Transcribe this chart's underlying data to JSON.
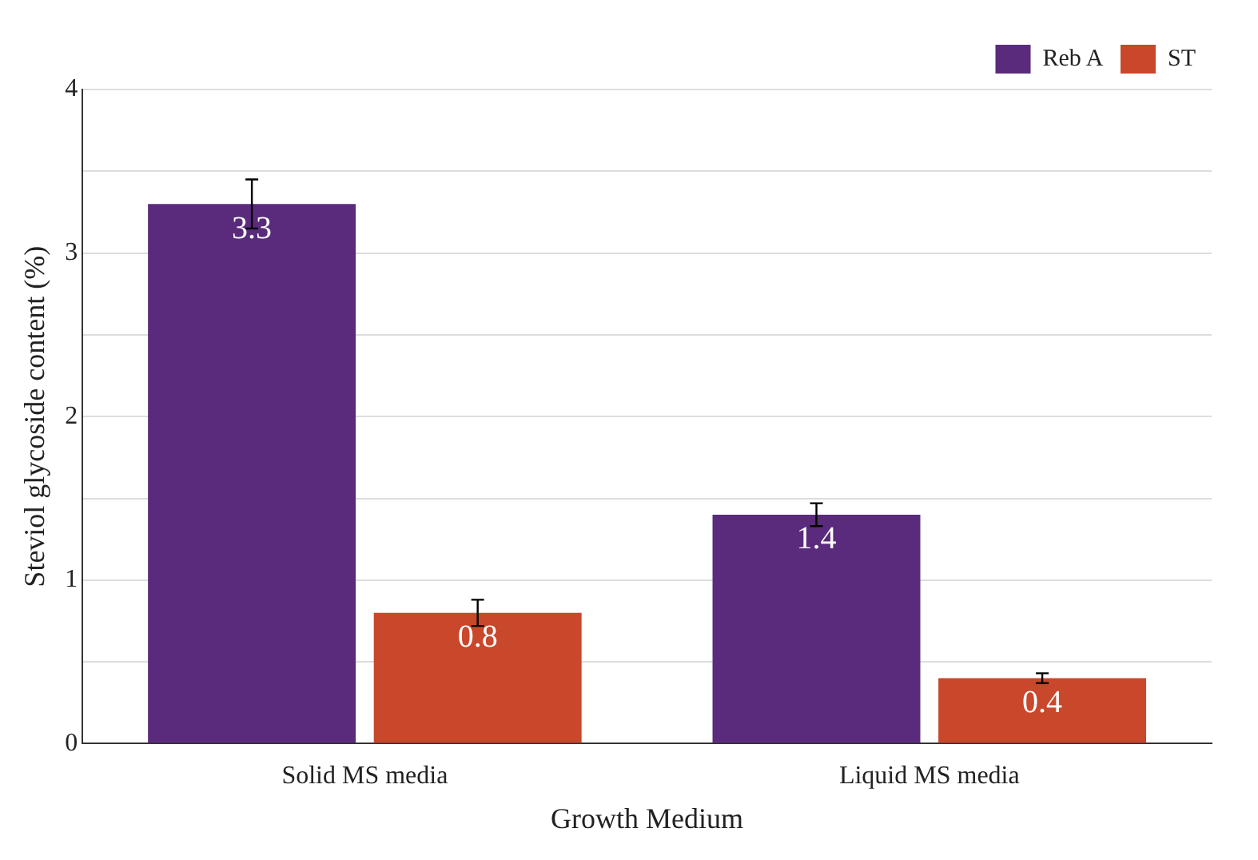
{
  "chart_data": {
    "type": "bar",
    "xlabel": "Growth Medium",
    "ylabel": "Steviol glycoside content (%)",
    "categories": [
      "Solid MS media",
      "Liquid MS media"
    ],
    "series": [
      {
        "name": "Reb A",
        "color": "#5a2b7c",
        "values": [
          3.3,
          1.4
        ],
        "errors": [
          0.15,
          0.07
        ]
      },
      {
        "name": "ST",
        "color": "#c9472b",
        "values": [
          0.8,
          0.4
        ],
        "errors": [
          0.08,
          0.03
        ]
      }
    ],
    "ylim": [
      0,
      4
    ],
    "yticks": [
      0,
      {
        "value": 0.5,
        "label": null
      },
      1,
      {
        "value": 1.5,
        "label": null
      },
      2,
      {
        "value": 2.5,
        "label": null
      },
      3,
      {
        "value": 3.5,
        "label": null
      },
      4
    ],
    "grid": "y",
    "legend": "top right",
    "data_labels": true
  }
}
